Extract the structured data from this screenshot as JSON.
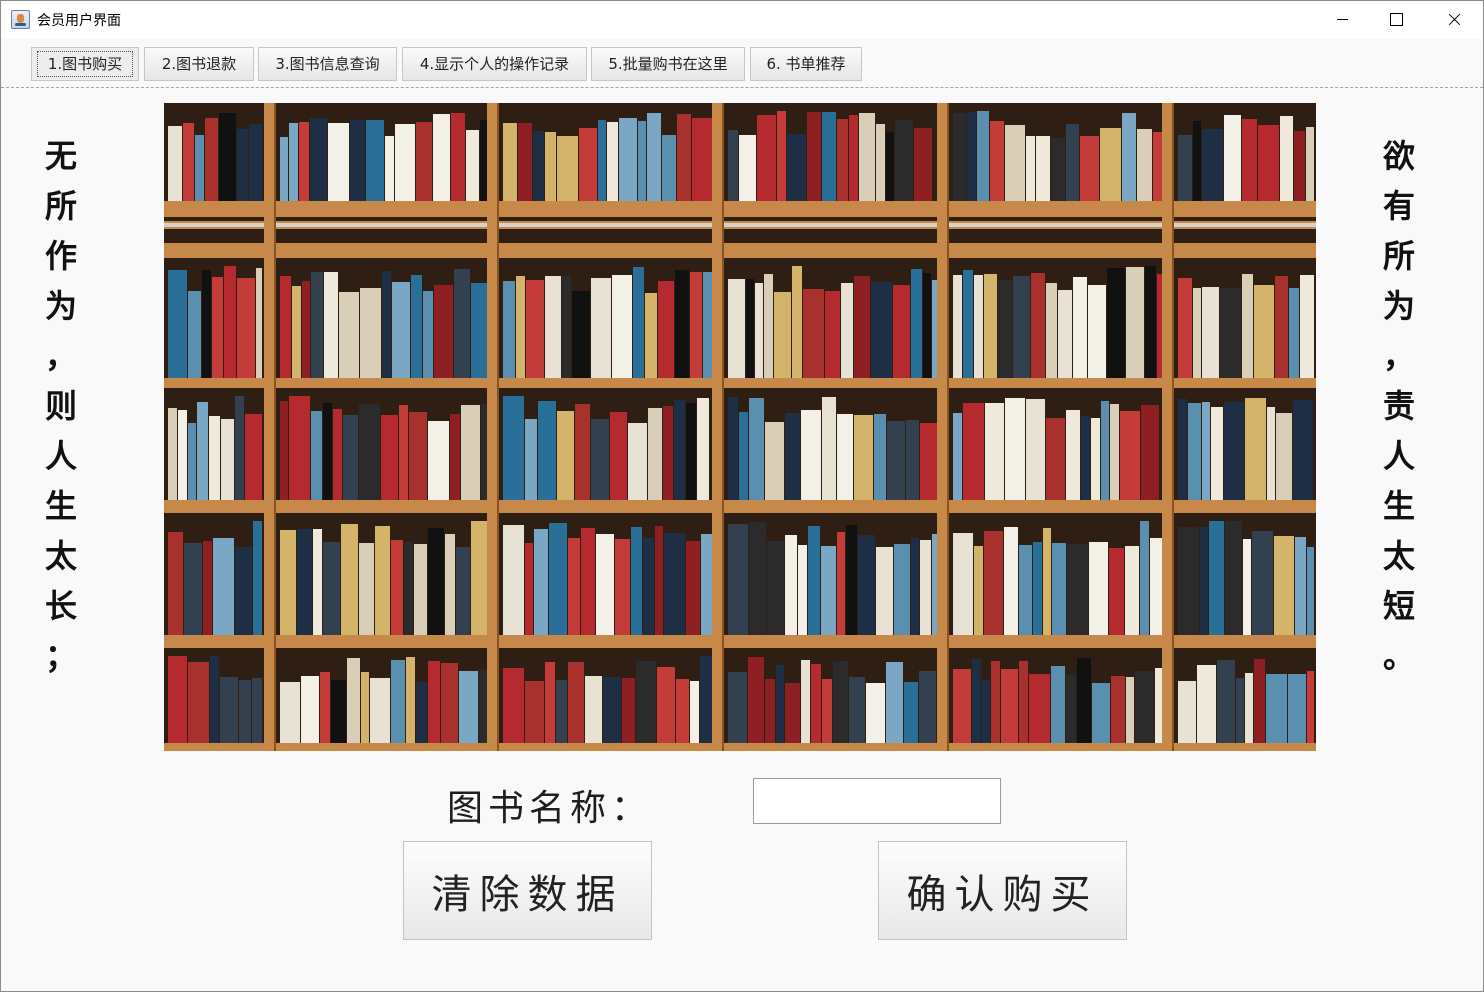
{
  "window": {
    "title": "会员用户界面",
    "controls": {
      "minimize": "minimize",
      "maximize": "maximize",
      "close": "close"
    }
  },
  "tabs": [
    {
      "label": "1.图书购买",
      "active": true
    },
    {
      "label": "2.图书退款",
      "active": false
    },
    {
      "label": "3.图书信息查询",
      "active": false
    },
    {
      "label": "4.显示个人的操作记录",
      "active": false
    },
    {
      "label": "5.批量购书在这里",
      "active": false
    },
    {
      "label": "6. 书单推荐",
      "active": false
    }
  ],
  "side_text": {
    "left": [
      "无",
      "所",
      "作",
      "为",
      "，",
      "则",
      "人",
      "生",
      "太",
      "长",
      "；"
    ],
    "right": [
      "欲",
      "有",
      "所",
      "为",
      "，",
      "责",
      "人",
      "生",
      "太",
      "短",
      "。"
    ]
  },
  "form": {
    "book_name_label": "图书名称：",
    "book_name_value": "",
    "clear_button": "清除数据",
    "confirm_button": "确认购买"
  },
  "colors": {
    "wood": "#c7894a",
    "wood_dark": "#8a5322",
    "shelf_back": "#2e1e14"
  }
}
